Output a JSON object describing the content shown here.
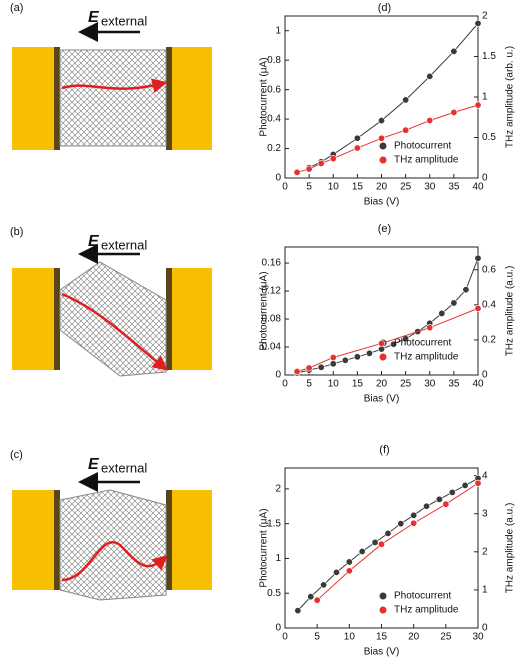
{
  "panels": [
    {
      "label": "(a)",
      "field_symbol": "E",
      "field_name": "external"
    },
    {
      "label": "(b)",
      "field_symbol": "E",
      "field_name": "external"
    },
    {
      "label": "(c)",
      "field_symbol": "E",
      "field_name": "external"
    }
  ],
  "chart_data": [
    {
      "type": "scatter",
      "label": "(d)",
      "xlabel": "Bias (V)",
      "ylabel": "Photocurrent (μA)",
      "y2label": "THz amplitude (arb. u.)",
      "xlim": [
        0,
        40
      ],
      "xticks": [
        0,
        5,
        10,
        15,
        20,
        25,
        30,
        35,
        40
      ],
      "ylim": [
        0,
        1.1
      ],
      "yticks": [
        0,
        0.2,
        0.4,
        0.6,
        0.8,
        1
      ],
      "y2lim": [
        0,
        2
      ],
      "y2ticks": [
        0,
        0.5,
        1,
        1.5,
        2
      ],
      "legend": "lower right",
      "series": [
        {
          "name": "Photocurrent",
          "color": "#3a3a3a",
          "x": [
            5,
            7.5,
            10,
            15,
            20,
            25,
            30,
            35,
            40
          ],
          "values": [
            0.07,
            0.11,
            0.16,
            0.27,
            0.39,
            0.53,
            0.69,
            0.86,
            1.05
          ]
        },
        {
          "name": "THz amplitude",
          "color": "#e8312f",
          "axis": "y2",
          "x": [
            2.5,
            5,
            7.5,
            10,
            15,
            20,
            25,
            30,
            35,
            40
          ],
          "values": [
            0.07,
            0.11,
            0.18,
            0.24,
            0.37,
            0.49,
            0.59,
            0.71,
            0.81,
            0.9
          ]
        }
      ]
    },
    {
      "type": "scatter",
      "label": "(e)",
      "xlabel": "Bias (V)",
      "ylabel": "Photocurrent (μA)",
      "y2label": "THz amplitude (a.u.)",
      "xlim": [
        0,
        40
      ],
      "xticks": [
        0,
        5,
        10,
        15,
        20,
        25,
        30,
        35,
        40
      ],
      "ylim": [
        0,
        0.183
      ],
      "yticks": [
        0,
        0.04,
        0.08,
        0.12,
        0.16
      ],
      "y2lim": [
        0,
        0.73
      ],
      "y2ticks": [
        0,
        0.2,
        0.4,
        0.6
      ],
      "legend": "lower right",
      "series": [
        {
          "name": "Photocurrent",
          "color": "#3a3a3a",
          "x": [
            2.5,
            5,
            7.5,
            10,
            12.5,
            15,
            17.5,
            20,
            22.5,
            25,
            27.5,
            30,
            32.5,
            35,
            37.5,
            40
          ],
          "values": [
            0.003,
            0.007,
            0.011,
            0.016,
            0.021,
            0.026,
            0.031,
            0.037,
            0.044,
            0.052,
            0.062,
            0.074,
            0.088,
            0.103,
            0.122,
            0.167
          ]
        },
        {
          "name": "THz amplitude",
          "color": "#e8312f",
          "axis": "y2",
          "x": [
            2.5,
            5,
            10,
            20,
            30,
            40
          ],
          "values": [
            0.02,
            0.04,
            0.1,
            0.18,
            0.27,
            0.38
          ]
        }
      ]
    },
    {
      "type": "scatter",
      "label": "(f)",
      "xlabel": "Bias (V)",
      "ylabel": "Photocurrent (μA)",
      "y2label": "THz amplitude (a.u.)",
      "xlim": [
        0,
        30
      ],
      "xticks": [
        0,
        5,
        10,
        15,
        20,
        25,
        30
      ],
      "ylim": [
        0,
        2.3
      ],
      "yticks": [
        0,
        0.5,
        1,
        1.5,
        2
      ],
      "y2lim": [
        0,
        4.2
      ],
      "y2ticks": [
        0,
        1,
        2,
        3,
        4
      ],
      "legend": "lower right",
      "series": [
        {
          "name": "Photocurrent",
          "color": "#3a3a3a",
          "x": [
            2,
            4,
            6,
            8,
            10,
            12,
            14,
            16,
            18,
            20,
            22,
            24,
            26,
            28,
            30
          ],
          "values": [
            0.25,
            0.45,
            0.62,
            0.8,
            0.95,
            1.1,
            1.23,
            1.36,
            1.5,
            1.62,
            1.75,
            1.85,
            1.95,
            2.05,
            2.15
          ]
        },
        {
          "name": "THz amplitude",
          "color": "#e8312f",
          "axis": "y2",
          "x": [
            5,
            10,
            15,
            20,
            25,
            30
          ],
          "values": [
            0.73,
            1.5,
            2.2,
            2.75,
            3.25,
            3.8
          ]
        }
      ]
    }
  ]
}
